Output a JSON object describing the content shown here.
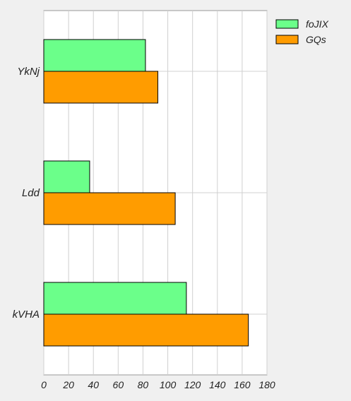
{
  "chart_data": {
    "type": "bar",
    "orientation": "horizontal",
    "title": "",
    "xlabel": "",
    "ylabel": "",
    "categories": [
      "YkNj",
      "Ldd",
      "kVHA"
    ],
    "series": [
      {
        "name": "foJIX",
        "color": "#6bff8a",
        "values": [
          82,
          37,
          115
        ]
      },
      {
        "name": "GQs",
        "color": "#ff9c00",
        "values": [
          92,
          106,
          165
        ]
      }
    ],
    "xlim": [
      0,
      180
    ],
    "xticks": [
      0,
      20,
      40,
      60,
      80,
      100,
      120,
      140,
      160,
      180
    ],
    "grid": true,
    "legend_position": "top-right"
  }
}
